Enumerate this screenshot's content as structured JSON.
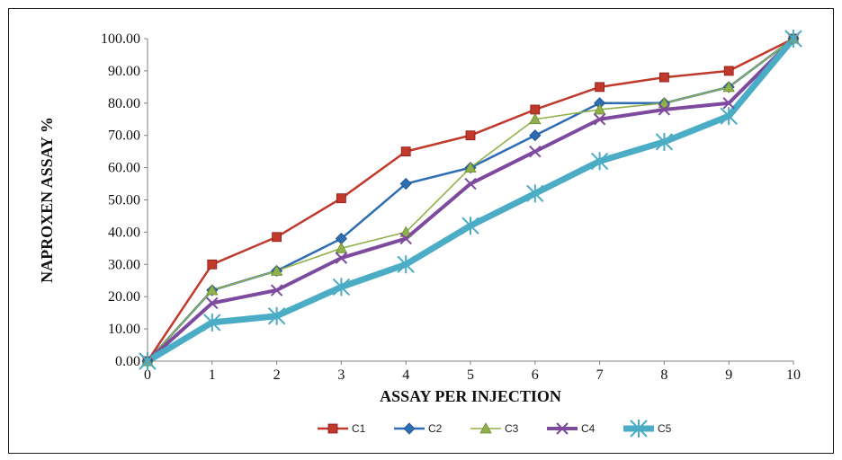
{
  "chart_data": {
    "type": "line",
    "xlabel": "ASSAY PER INJECTION",
    "ylabel": "NAPROXEN ASSAY %",
    "x": [
      0,
      1,
      2,
      3,
      4,
      5,
      6,
      7,
      8,
      9,
      10
    ],
    "xlim": [
      0,
      10
    ],
    "ylim": [
      0,
      100
    ],
    "y_ticks": [
      "0.00",
      "10.00",
      "20.00",
      "30.00",
      "40.00",
      "50.00",
      "60.00",
      "70.00",
      "80.00",
      "90.00",
      "100.00"
    ],
    "x_ticks": [
      "0",
      "1",
      "2",
      "3",
      "4",
      "5",
      "6",
      "7",
      "8",
      "9",
      "10"
    ],
    "grid": false,
    "legend_position": "bottom",
    "series": [
      {
        "name": "C1",
        "color": "#c0392b",
        "marker": "square",
        "values": [
          0,
          30,
          38.5,
          50.5,
          65,
          70,
          78,
          85,
          88,
          90,
          100
        ]
      },
      {
        "name": "C2",
        "color": "#2e6db4",
        "marker": "diamond",
        "values": [
          0,
          22,
          28,
          38,
          55,
          60,
          70,
          80,
          80,
          85,
          100
        ]
      },
      {
        "name": "C3",
        "color": "#8fb04a",
        "marker": "triangle",
        "values": [
          0,
          22,
          28,
          35,
          40,
          60,
          75,
          78,
          80,
          85,
          100
        ]
      },
      {
        "name": "C4",
        "color": "#7d4a9e",
        "marker": "x",
        "values": [
          0,
          18,
          22,
          32,
          38,
          55,
          65,
          75,
          78,
          80,
          100
        ]
      },
      {
        "name": "C5",
        "color": "#4bacc6",
        "marker": "star",
        "values": [
          0,
          12,
          14,
          23,
          30,
          42,
          52,
          62,
          68,
          76,
          100
        ]
      }
    ]
  }
}
